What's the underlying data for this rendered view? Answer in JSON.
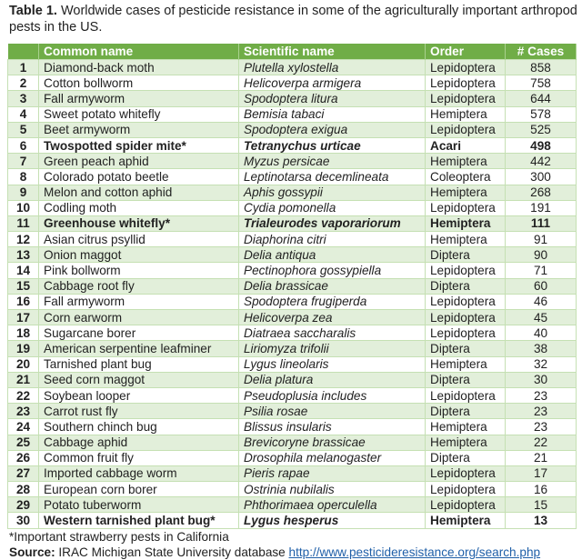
{
  "caption": {
    "label": "Table 1.",
    "text": " Worldwide cases of pesticide resistance in some of the agriculturally important arthropod pests in the US."
  },
  "headers": [
    "",
    "Common name",
    "Scientific name",
    "Order",
    "# Cases"
  ],
  "rows": [
    [
      "1",
      "Diamond-back moth",
      "Plutella xylostella",
      "Lepidoptera",
      "858",
      false
    ],
    [
      "2",
      "Cotton bollworm",
      "Helicoverpa armigera",
      "Lepidoptera",
      "758",
      false
    ],
    [
      "3",
      "Fall armyworm",
      "Spodoptera litura",
      "Lepidoptera",
      "644",
      false
    ],
    [
      "4",
      "Sweet potato whitefly",
      "Bemisia tabaci",
      "Hemiptera",
      "578",
      false
    ],
    [
      "5",
      "Beet armyworm",
      "Spodoptera exigua",
      "Lepidoptera",
      "525",
      false
    ],
    [
      "6",
      "Twospotted spider mite*",
      "Tetranychus urticae",
      "Acari",
      "498",
      true
    ],
    [
      "7",
      "Green peach aphid",
      "Myzus persicae",
      "Hemiptera",
      "442",
      false
    ],
    [
      "8",
      "Colorado potato beetle",
      "Leptinotarsa decemlineata",
      "Coleoptera",
      "300",
      false
    ],
    [
      "9",
      "Melon and cotton aphid",
      "Aphis gossypii",
      "Hemiptera",
      "268",
      false
    ],
    [
      "10",
      "Codling moth",
      "Cydia pomonella",
      "Lepidoptera",
      "191",
      false
    ],
    [
      "11",
      "Greenhouse whitefly*",
      "Trialeurodes vaporariorum",
      "Hemiptera",
      "111",
      true
    ],
    [
      "12",
      "Asian citrus psyllid",
      "Diaphorina citri",
      "Hemiptera",
      "91",
      false
    ],
    [
      "13",
      "Onion maggot",
      "Delia antiqua",
      "Diptera",
      "90",
      false
    ],
    [
      "14",
      "Pink bollworm",
      "Pectinophora gossypiella",
      "Lepidoptera",
      "71",
      false
    ],
    [
      "15",
      "Cabbage root fly",
      "Delia brassicae",
      "Diptera",
      "60",
      false
    ],
    [
      "16",
      "Fall armyworm",
      "Spodoptera frugiperda",
      "Lepidoptera",
      "46",
      false
    ],
    [
      "17",
      "Corn earworm",
      "Helicoverpa zea",
      "Lepidoptera",
      "45",
      false
    ],
    [
      "18",
      "Sugarcane borer",
      "Diatraea saccharalis",
      "Lepidoptera",
      "40",
      false
    ],
    [
      "19",
      "American serpentine leafminer",
      "Liriomyza trifolii",
      "Diptera",
      "38",
      false
    ],
    [
      "20",
      "Tarnished plant bug",
      "Lygus lineolaris",
      "Hemiptera",
      "32",
      false
    ],
    [
      "21",
      "Seed corn maggot",
      "Delia platura",
      "Diptera",
      "30",
      false
    ],
    [
      "22",
      "Soybean looper",
      "Pseudoplusia includes",
      "Lepidoptera",
      "23",
      false
    ],
    [
      "23",
      "Carrot rust fly",
      "Psilia rosae",
      "Diptera",
      "23",
      false
    ],
    [
      "24",
      "Southern chinch bug",
      "Blissus insularis",
      "Hemiptera",
      "23",
      false
    ],
    [
      "25",
      "Cabbage aphid",
      "Brevicoryne brassicae",
      "Hemiptera",
      "22",
      false
    ],
    [
      "26",
      "Common fruit fly",
      "Drosophila melanogaster",
      "Diptera",
      "21",
      false
    ],
    [
      "27",
      "Imported cabbage worm",
      "Pieris rapae",
      "Lepidoptera",
      "17",
      false
    ],
    [
      "28",
      "European corn borer",
      "Ostrinia nubilalis",
      "Lepidoptera",
      "16",
      false
    ],
    [
      "29",
      "Potato tuberworm",
      "Phthorimaea operculella",
      "Lepidoptera",
      "15",
      false
    ],
    [
      "30",
      "Western tarnished plant bug*",
      "Lygus hesperus",
      "Hemiptera",
      "13",
      true
    ]
  ],
  "note": "*Important strawberry pests in California",
  "source": {
    "label": "Source:",
    "text": " IRAC Michigan State University database ",
    "link": "http://www.pesticideresistance.org/search.php"
  },
  "colors": {
    "header": "#70ad47",
    "row_alt": "#e2efda",
    "link": "#1f5fa8"
  }
}
